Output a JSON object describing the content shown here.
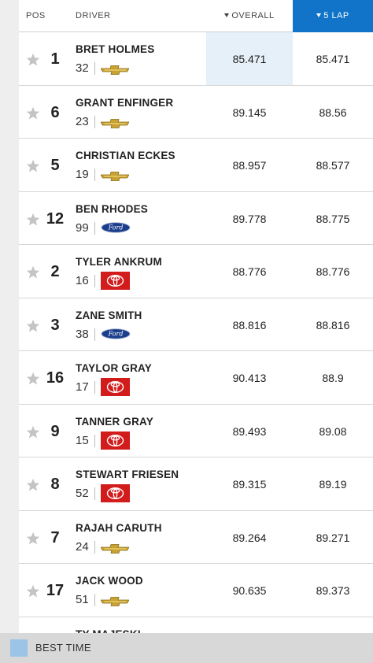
{
  "header": {
    "pos": "POS",
    "driver": "DRIVER",
    "overall": "OVERALL",
    "five_lap": "5 LAP"
  },
  "rows": [
    {
      "pos": "1",
      "name": "BRET HOLMES",
      "number": "32",
      "make": "chevrolet",
      "overall": "85.471",
      "five_lap": "85.471",
      "best": true
    },
    {
      "pos": "6",
      "name": "GRANT ENFINGER",
      "number": "23",
      "make": "chevrolet",
      "overall": "89.145",
      "five_lap": "88.56"
    },
    {
      "pos": "5",
      "name": "CHRISTIAN ECKES",
      "number": "19",
      "make": "chevrolet",
      "overall": "88.957",
      "five_lap": "88.577"
    },
    {
      "pos": "12",
      "name": "BEN RHODES",
      "number": "99",
      "make": "ford",
      "overall": "89.778",
      "five_lap": "88.775"
    },
    {
      "pos": "2",
      "name": "TYLER ANKRUM",
      "number": "16",
      "make": "toyota",
      "overall": "88.776",
      "five_lap": "88.776"
    },
    {
      "pos": "3",
      "name": "ZANE SMITH",
      "number": "38",
      "make": "ford",
      "overall": "88.816",
      "five_lap": "88.816"
    },
    {
      "pos": "16",
      "name": "TAYLOR GRAY",
      "number": "17",
      "make": "toyota",
      "overall": "90.413",
      "five_lap": "88.9"
    },
    {
      "pos": "9",
      "name": "TANNER GRAY",
      "number": "15",
      "make": "toyota",
      "overall": "89.493",
      "five_lap": "89.08"
    },
    {
      "pos": "8",
      "name": "STEWART FRIESEN",
      "number": "52",
      "make": "toyota",
      "overall": "89.315",
      "five_lap": "89.19"
    },
    {
      "pos": "7",
      "name": "RAJAH CARUTH",
      "number": "24",
      "make": "chevrolet",
      "overall": "89.264",
      "five_lap": "89.271"
    },
    {
      "pos": "17",
      "name": "JACK WOOD",
      "number": "51",
      "make": "chevrolet",
      "overall": "90.635",
      "five_lap": "89.373"
    },
    {
      "pos": "",
      "name": "TY MAJESKI",
      "number": "",
      "make": "",
      "overall": "",
      "five_lap": ""
    }
  ],
  "legend": {
    "label": "BEST TIME"
  },
  "colors": {
    "active_header": "#1174c8",
    "best_time": "#9cc4e6",
    "best_cell": "#e5f0f8",
    "chevrolet": "#c9a233",
    "ford": "#1b3e8c",
    "toyota": "#d21c1c"
  }
}
